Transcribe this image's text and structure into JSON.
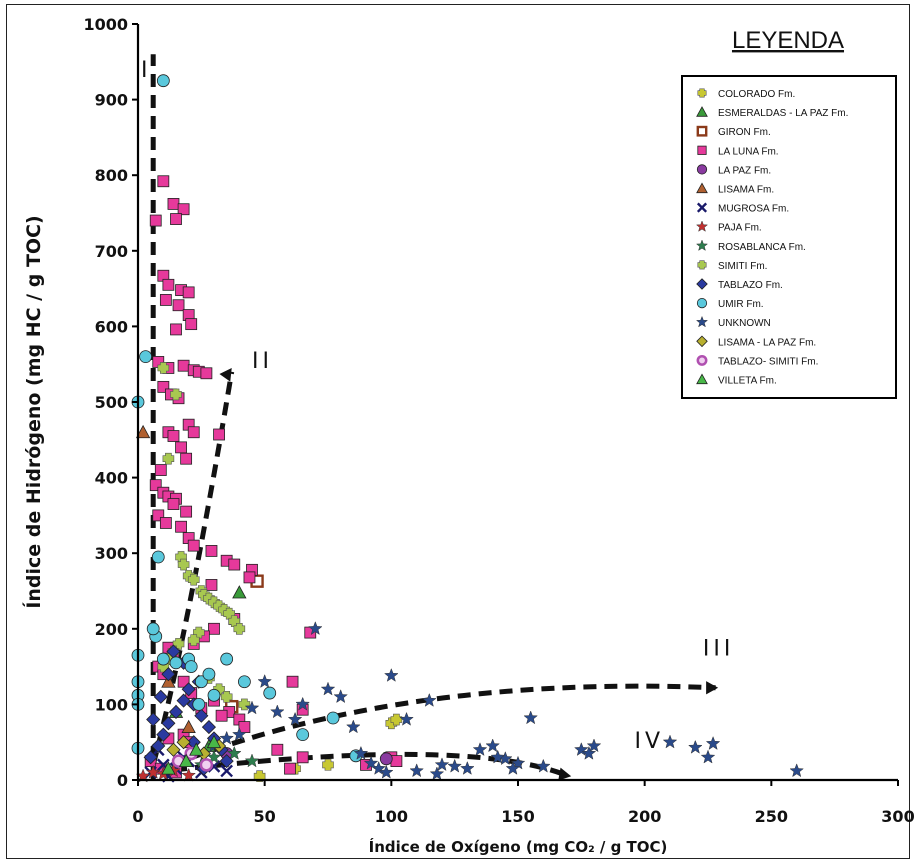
{
  "chart_data": {
    "type": "scatter",
    "title": "",
    "xlabel": "Índice de Oxígeno (mg CO₂ / g TOC)",
    "ylabel": "Índice de Hidrógeno (mg HC / g TOC)",
    "xlim": [
      0,
      300
    ],
    "ylim": [
      0,
      1000
    ],
    "x_ticks": [
      0,
      50,
      100,
      150,
      200,
      250,
      300
    ],
    "y_ticks": [
      0,
      100,
      200,
      300,
      400,
      500,
      600,
      700,
      800,
      900,
      1000
    ],
    "grid": false,
    "legend_title": "LEYENDA",
    "legend_position": "top-right",
    "region_labels": [
      "I",
      "II",
      "III",
      "IV"
    ],
    "series": [
      {
        "name": "COLORADO Fm.",
        "marker": "plus",
        "color": "#c8c832",
        "x": [
          48,
          62,
          75,
          100,
          102
        ],
        "y": [
          5,
          15,
          20,
          75,
          80
        ]
      },
      {
        "name": "ESMERALDAS - LA PAZ Fm.",
        "marker": "triangle",
        "color": "#3a9a3a",
        "x": [
          40,
          15,
          28
        ],
        "y": [
          248,
          90,
          45
        ]
      },
      {
        "name": "GIRON Fm.",
        "marker": "square-open",
        "color": "#8b3a1a",
        "x": [
          47,
          37
        ],
        "y": [
          263,
          97
        ]
      },
      {
        "name": "LA LUNA Fm.",
        "marker": "square",
        "color": "#e6399b",
        "x": [
          10,
          7,
          14,
          18,
          15,
          10,
          12,
          17,
          20,
          11,
          16,
          20,
          21,
          15,
          8,
          12,
          18,
          22,
          24,
          27,
          10,
          13,
          16,
          20,
          22,
          12,
          14,
          32,
          17,
          19,
          9,
          7,
          10,
          12,
          15,
          14,
          19,
          8,
          11,
          17,
          20,
          22,
          29,
          35,
          38,
          45,
          44,
          29,
          68,
          61,
          65,
          36,
          38,
          30,
          26,
          22,
          12,
          14,
          8,
          10,
          18,
          21,
          30,
          25,
          33,
          40,
          42,
          18,
          12,
          20,
          55,
          65,
          100,
          102,
          90,
          60,
          5,
          9,
          15
        ],
        "y": [
          792,
          740,
          762,
          755,
          742,
          667,
          655,
          648,
          645,
          635,
          628,
          615,
          603,
          596,
          553,
          545,
          548,
          542,
          540,
          538,
          520,
          510,
          505,
          470,
          460,
          460,
          455,
          457,
          440,
          425,
          410,
          390,
          380,
          375,
          372,
          365,
          355,
          350,
          340,
          335,
          320,
          310,
          303,
          290,
          285,
          278,
          268,
          258,
          195,
          130,
          93,
          90,
          213,
          200,
          190,
          180,
          175,
          160,
          150,
          140,
          130,
          115,
          105,
          95,
          85,
          80,
          70,
          60,
          55,
          50,
          40,
          30,
          30,
          25,
          20,
          15,
          25,
          15,
          10
        ]
      },
      {
        "name": "LA PAZ Fm.",
        "marker": "circle",
        "color": "#8a3aa0",
        "x": [
          98,
          35
        ],
        "y": [
          28,
          35
        ]
      },
      {
        "name": "LISAMA Fm.",
        "marker": "triangle",
        "color": "#b06030",
        "x": [
          2,
          12,
          20
        ],
        "y": [
          460,
          130,
          70
        ]
      },
      {
        "name": "MUGROSA Fm.",
        "marker": "x",
        "color": "#1a1a6a",
        "x": [
          5,
          10,
          15,
          20,
          25,
          30,
          35,
          8,
          12,
          18
        ],
        "y": [
          10,
          20,
          15,
          25,
          10,
          18,
          12,
          40,
          5,
          30
        ]
      },
      {
        "name": "PAJA Fm.",
        "marker": "star",
        "color": "#c03030",
        "x": [
          2,
          6,
          10,
          14,
          20
        ],
        "y": [
          5,
          10,
          8,
          12,
          6
        ]
      },
      {
        "name": "ROSABLANCA Fm.",
        "marker": "star",
        "color": "#2e7d4e",
        "x": [
          25,
          30,
          38,
          45
        ],
        "y": [
          20,
          30,
          35,
          25
        ]
      },
      {
        "name": "SIMITI Fm.",
        "marker": "plus",
        "color": "#a8c850",
        "x": [
          10,
          15,
          12,
          17,
          18,
          20,
          22,
          25,
          26,
          28,
          30,
          32,
          34,
          36,
          38,
          40,
          24,
          22,
          16,
          14,
          12,
          10,
          28,
          32,
          35,
          42
        ],
        "y": [
          545,
          510,
          425,
          295,
          285,
          270,
          265,
          250,
          245,
          240,
          235,
          230,
          225,
          220,
          210,
          200,
          195,
          185,
          180,
          170,
          160,
          150,
          135,
          120,
          110,
          100
        ]
      },
      {
        "name": "TABLAZO Fm.",
        "marker": "diamond",
        "color": "#2a3aa0",
        "x": [
          5,
          8,
          10,
          12,
          15,
          18,
          20,
          22,
          25,
          28,
          30,
          33,
          35,
          12,
          18,
          24,
          14,
          9,
          6,
          22,
          26
        ],
        "y": [
          30,
          45,
          60,
          75,
          90,
          105,
          120,
          100,
          85,
          70,
          55,
          40,
          25,
          140,
          155,
          130,
          170,
          110,
          80,
          50,
          15
        ]
      },
      {
        "name": "UMIR Fm.",
        "marker": "circle",
        "color": "#5ac8dc",
        "x": [
          10,
          3,
          0,
          0,
          0,
          0,
          0,
          7,
          10,
          0,
          6,
          8,
          15,
          20,
          21,
          25,
          30,
          35,
          42,
          52,
          65,
          77,
          86,
          24,
          28
        ],
        "y": [
          925,
          560,
          500,
          165,
          130,
          112,
          100,
          190,
          160,
          42,
          200,
          295,
          155,
          160,
          150,
          130,
          112,
          160,
          130,
          115,
          60,
          82,
          32,
          100,
          140
        ]
      },
      {
        "name": "UNKNOWN",
        "marker": "star",
        "color": "#2a4a8a",
        "x": [
          70,
          100,
          155,
          210,
          220,
          225,
          227,
          260,
          180,
          175,
          178,
          115,
          120,
          125,
          130,
          140,
          145,
          150,
          160,
          95,
          85,
          80,
          75,
          62,
          55,
          50,
          45,
          40,
          35,
          30,
          88,
          92,
          98,
          110,
          118,
          135,
          142,
          148,
          106,
          65
        ],
        "y": [
          200,
          138,
          82,
          50,
          43,
          30,
          48,
          12,
          45,
          40,
          35,
          105,
          20,
          18,
          15,
          45,
          28,
          22,
          18,
          15,
          70,
          110,
          120,
          80,
          90,
          130,
          95,
          60,
          55,
          45,
          35,
          22,
          10,
          12,
          8,
          40,
          30,
          15,
          80,
          100
        ]
      },
      {
        "name": "LISAMA - LA PAZ Fm.",
        "marker": "diamond",
        "color": "#b8b030",
        "x": [
          14,
          18,
          26,
          32
        ],
        "y": [
          40,
          50,
          35,
          45
        ]
      },
      {
        "name": "TABLAZO- SIMITI Fm.",
        "marker": "circle-half",
        "color": "#b050b0",
        "x": [
          16,
          21,
          27
        ],
        "y": [
          25,
          35,
          20
        ]
      },
      {
        "name": "VILLETA Fm.",
        "marker": "triangle",
        "color": "#48b848",
        "x": [
          12,
          19,
          23,
          30
        ],
        "y": [
          15,
          25,
          40,
          50
        ]
      }
    ]
  }
}
